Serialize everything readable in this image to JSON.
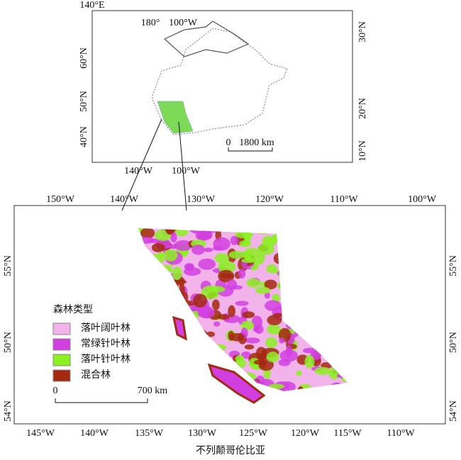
{
  "inset": {
    "corner_label": "140°E",
    "top_labels": [
      "180°",
      "100°W"
    ],
    "left_labels": [
      "60°N",
      "50°N",
      "40°N"
    ],
    "right_labels": [
      "30°N",
      "20°N",
      "10°N"
    ],
    "bottom_labels": [
      "140°W",
      "100°W"
    ],
    "scale": [
      "0",
      "1800 km"
    ],
    "highlight_color": "#7ed957"
  },
  "main": {
    "top_labels": [
      "150°W",
      "140°W",
      "130°W",
      "120°W",
      "110°W",
      "100°W"
    ],
    "bottom_labels": [
      "145°W",
      "140°W",
      "135°W",
      "130°W",
      "125°W",
      "120°W",
      "115°W",
      "110°W"
    ],
    "left_labels": [
      "55°N",
      "50°N",
      "54°N"
    ],
    "right_labels": [
      "55°N",
      "50°N",
      "54°N"
    ],
    "legend": {
      "title": "森林类型",
      "items": [
        {
          "name": "落叶阔叶林",
          "color": "#f2b3ea"
        },
        {
          "name": "常绿针叶林",
          "color": "#d23fe0"
        },
        {
          "name": "落叶针叶林",
          "color": "#8cf022"
        },
        {
          "name": "混合林",
          "color": "#a3290f"
        }
      ]
    },
    "scale": [
      "0",
      "700 km"
    ]
  },
  "caption": "不列颠哥伦比亚"
}
